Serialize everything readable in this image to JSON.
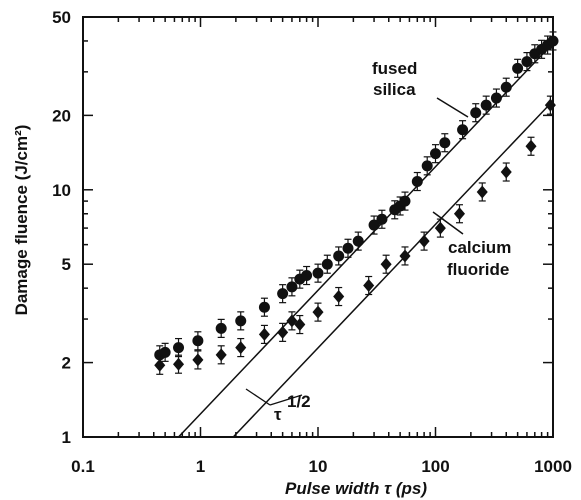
{
  "chart_data": {
    "type": "scatter",
    "title": "",
    "xlabel": "Pulse width τ (ps)",
    "ylabel": "Damage fluence (J/cm²)",
    "xscale": "log",
    "yscale": "log",
    "xlim": [
      0.1,
      1000
    ],
    "ylim": [
      1,
      50
    ],
    "xticks": [
      0.1,
      1,
      10,
      100,
      1000
    ],
    "xtick_labels": [
      "0.1",
      "1",
      "10",
      "100",
      "1000"
    ],
    "yticks": [
      1,
      2,
      5,
      10,
      20,
      50
    ],
    "ytick_labels": [
      "1",
      "2",
      "5",
      "10",
      "20",
      "50"
    ],
    "grid": false,
    "series": [
      {
        "name": "fused silica",
        "marker": "circle",
        "x": [
          0.45,
          0.5,
          0.65,
          0.95,
          1.5,
          2.2,
          3.5,
          5,
          6,
          7,
          8,
          10,
          12,
          15,
          18,
          22,
          30,
          35,
          45,
          50,
          55,
          70,
          85,
          100,
          120,
          170,
          220,
          270,
          330,
          400,
          500,
          600,
          700,
          800,
          900,
          1000
        ],
        "y": [
          2.15,
          2.2,
          2.3,
          2.45,
          2.75,
          2.95,
          3.35,
          3.8,
          4.05,
          4.35,
          4.5,
          4.6,
          5.0,
          5.4,
          5.8,
          6.2,
          7.2,
          7.6,
          8.3,
          8.6,
          9.0,
          10.8,
          12.5,
          14.0,
          15.5,
          17.5,
          20.5,
          22.0,
          23.5,
          26.0,
          31.0,
          33.0,
          35.5,
          37.0,
          38.5,
          40.0
        ]
      },
      {
        "name": "calcium fluoride",
        "marker": "diamond",
        "x": [
          0.45,
          0.65,
          0.95,
          1.5,
          2.2,
          3.5,
          5,
          6,
          7,
          10,
          15,
          27,
          38,
          55,
          80,
          110,
          160,
          250,
          400,
          650,
          950
        ],
        "y": [
          1.95,
          1.97,
          2.05,
          2.15,
          2.3,
          2.6,
          2.65,
          2.95,
          2.85,
          3.2,
          3.7,
          4.1,
          5.0,
          5.4,
          6.2,
          7.0,
          8.0,
          9.8,
          11.8,
          15.0,
          22.0
        ]
      }
    ],
    "fit_lines": [
      {
        "x": [
          0.65,
          1000
        ],
        "y": [
          1.0,
          39.2
        ]
      },
      {
        "x": [
          1.9,
          1000
        ],
        "y": [
          1.0,
          22.9
        ]
      }
    ],
    "annotations": [
      {
        "text": "fused",
        "near": "fused silica"
      },
      {
        "text": "silica",
        "near": "fused silica"
      },
      {
        "text": "calcium",
        "near": "calcium fluoride"
      },
      {
        "text": "fluoride",
        "near": "calcium fluoride"
      },
      {
        "text": "τ",
        "sup": "1/2"
      }
    ]
  }
}
